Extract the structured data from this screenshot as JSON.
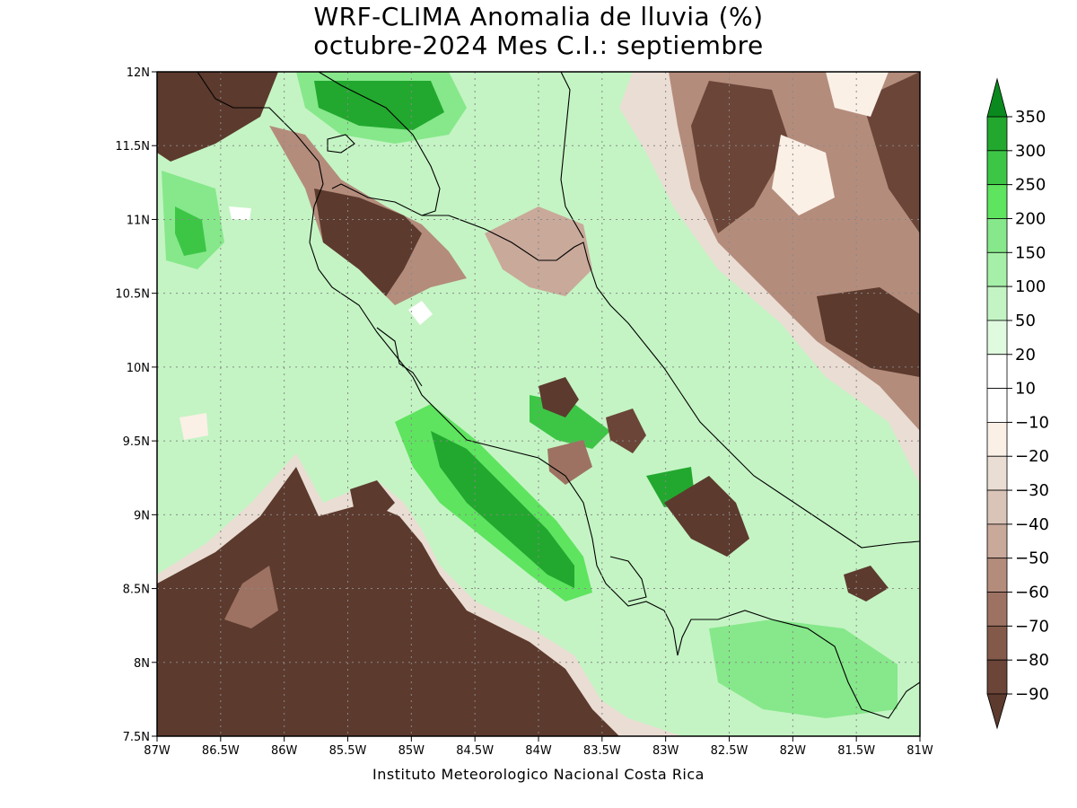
{
  "header": {
    "title_line1": "WRF-CLIMA Anomalia de lluvia (%)",
    "title_line2": "octubre-2024 Mes C.I.: septiembre"
  },
  "footer": {
    "credit": "Instituto Meteorologico Nacional Costa Rica"
  },
  "map": {
    "lon_range": [
      -87,
      -81
    ],
    "lat_range": [
      7.5,
      12
    ],
    "x_ticks": [
      {
        "value": -87,
        "label": "87W"
      },
      {
        "value": -86.5,
        "label": "86.5W"
      },
      {
        "value": -86,
        "label": "86W"
      },
      {
        "value": -85.5,
        "label": "85.5W"
      },
      {
        "value": -85,
        "label": "85W"
      },
      {
        "value": -84.5,
        "label": "84.5W"
      },
      {
        "value": -84,
        "label": "84W"
      },
      {
        "value": -83.5,
        "label": "83.5W"
      },
      {
        "value": -83,
        "label": "83W"
      },
      {
        "value": -82.5,
        "label": "82.5W"
      },
      {
        "value": -82,
        "label": "82W"
      },
      {
        "value": -81.5,
        "label": "81.5W"
      },
      {
        "value": -81,
        "label": "81W"
      }
    ],
    "y_ticks": [
      {
        "value": 12,
        "label": "12N"
      },
      {
        "value": 11.5,
        "label": "11.5N"
      },
      {
        "value": 11,
        "label": "11N"
      },
      {
        "value": 10.5,
        "label": "10.5N"
      },
      {
        "value": 10,
        "label": "10N"
      },
      {
        "value": 9.5,
        "label": "9.5N"
      },
      {
        "value": 9,
        "label": "9N"
      },
      {
        "value": 8.5,
        "label": "8.5N"
      },
      {
        "value": 8,
        "label": "8N"
      },
      {
        "value": 7.5,
        "label": "7.5N"
      }
    ],
    "grid": true
  },
  "colorbar": {
    "levels": [
      {
        "label": "350",
        "color": "#0a8a1e"
      },
      {
        "label": "300",
        "color": "#22a82e"
      },
      {
        "label": "250",
        "color": "#3dc646"
      },
      {
        "label": "200",
        "color": "#5ee45f"
      },
      {
        "label": "150",
        "color": "#86e88a"
      },
      {
        "label": "100",
        "color": "#a6efa8"
      },
      {
        "label": "50",
        "color": "#c4f4c4"
      },
      {
        "label": "20",
        "color": "#e0fae0"
      },
      {
        "label": "10",
        "color": "#ffffff"
      },
      {
        "label": "-10",
        "color": "#faf0e6"
      },
      {
        "label": "-20",
        "color": "#eaddd3"
      },
      {
        "label": "-30",
        "color": "#dac4b8"
      },
      {
        "label": "-40",
        "color": "#c9a99a"
      },
      {
        "label": "-50",
        "color": "#b48c7c"
      },
      {
        "label": "-60",
        "color": "#9d7262"
      },
      {
        "label": "-70",
        "color": "#835a4a"
      },
      {
        "label": "-80",
        "color": "#6b4538"
      },
      {
        "label": "-90",
        "color": "#5c3a2e"
      }
    ],
    "top_color": "#0a8a1e",
    "bottom_color": "#5c3a2e"
  }
}
